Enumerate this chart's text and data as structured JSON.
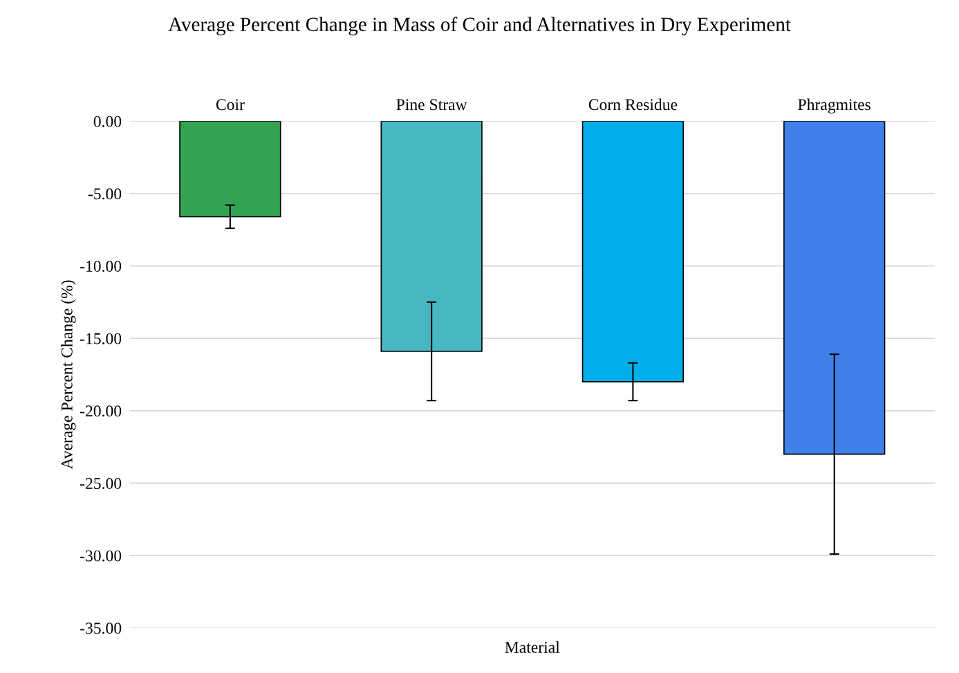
{
  "chart_data": {
    "type": "bar",
    "title": "Average Percent Change in Mass of Coir and Alternatives in Dry Experiment",
    "xlabel": "Material",
    "ylabel": "Average Percent Change (%)",
    "categories": [
      "Coir",
      "Pine Straw",
      "Corn Residue",
      "Phragmites"
    ],
    "values": [
      -6.6,
      -15.9,
      -18.0,
      -23.0
    ],
    "errors": [
      0.8,
      3.4,
      1.3,
      6.9
    ],
    "colors": [
      "#33a352",
      "#47b7c1",
      "#00aeea",
      "#3f80ea"
    ],
    "ylim": [
      -35,
      0
    ],
    "yticks": [
      {
        "value": 0,
        "label": "0.00"
      },
      {
        "value": -5,
        "label": "-5.00"
      },
      {
        "value": -10,
        "label": "-10.00"
      },
      {
        "value": -15,
        "label": "-15.00"
      },
      {
        "value": -20,
        "label": "-20.00"
      },
      {
        "value": -25,
        "label": "-25.00"
      },
      {
        "value": -30,
        "label": "-30.00"
      },
      {
        "value": -35,
        "label": "-35.00"
      }
    ],
    "grid": "y"
  }
}
